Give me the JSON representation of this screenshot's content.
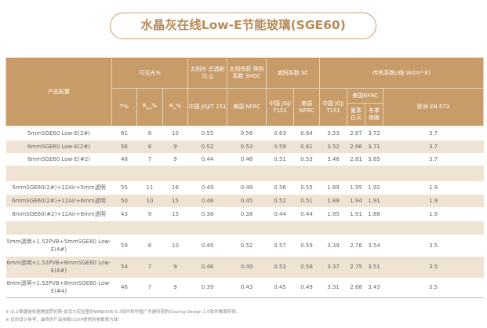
{
  "title": "水晶灰在线Low-E节能玻璃(SGE60)",
  "header": {
    "config": "产品配置",
    "visible": "可见光%",
    "solar": "太阳光 总透射比 g",
    "shgc": "太阳热获 得热系数 SHGC",
    "sc": "遮阳系数 SC",
    "u": "传热系数U值 W/(m²·K)",
    "t": "T%",
    "rout": "R",
    "rout_sub": "out",
    "rin": "R",
    "rin_sub": "in",
    "pct": "%",
    "cn_jgj_t151": "中国 JGJ/T 151",
    "us_nfrc": "美国 NFRC",
    "cn_jgj_t151b": "中国 JGJ/ T151",
    "us_nfrc_b": "美国 NFRC",
    "cn_jgj_t151c": "中国 JGJ/ T151",
    "us_nfrc_group": "美国NFRC",
    "summer": "夏季 白天",
    "winter": "冬季 夜晚",
    "eu": "欧洲 EN 673"
  },
  "rows": [
    [
      "5mmSGE60 Low-E(2#)",
      "61",
      "8",
      "10",
      "0.55",
      "0.56",
      "0.63",
      "0.64",
      "3.53",
      "2.87",
      "3.72",
      "3.7"
    ],
    [
      "6mmSGE60 Low-E(2#)",
      "56",
      "8",
      "9",
      "0.52",
      "0.53",
      "0.59",
      "0.61",
      "3.52",
      "2.86",
      "3.71",
      "3.7"
    ],
    [
      "8mmSGE60 Low-E(#2)",
      "48",
      "7",
      "9",
      "0.44",
      "0.46",
      "0.51",
      "0.53",
      "3.46",
      "2.81",
      "3.65",
      "3.7"
    ],
    null,
    [
      "5mmSGE60(2#)+12Air+5mm透明",
      "55",
      "11",
      "16",
      "0.49",
      "0.48",
      "0.56",
      "0.55",
      "1.89",
      "1.95",
      "1.92",
      "1.9"
    ],
    [
      "6mmSGE60(2#)+12Air+6mm透明",
      "50",
      "10",
      "15",
      "0.46",
      "0.45",
      "0.52",
      "0.51",
      "1.88",
      "1.94",
      "1.91",
      "1.9"
    ],
    [
      "8mmSGE60(#2)+12Air+8mm透明",
      "43",
      "9",
      "15",
      "0.38",
      "0.38",
      "0.44",
      "0.44",
      "1.85",
      "1.91",
      "1.88",
      "1.9"
    ],
    null,
    [
      "5mm透明+1.52PVB+5mmSGE60 Low-E(4#)",
      "59",
      "8",
      "10",
      "0.49",
      "0.52",
      "0.57",
      "0.59",
      "3.39",
      "2.76",
      "3.54",
      "3.5"
    ],
    [
      "6mm透明+1.52PVB+6mmSGE60 Low-E(4#)",
      "54",
      "7",
      "9",
      "0.46",
      "0.49",
      "0.53",
      "0.56",
      "3.37",
      "2.75",
      "3.51",
      "3.5"
    ],
    [
      "8mm透明+1.52PVB+8mmSGE60 Low-E(#4)",
      "46",
      "7",
      "9",
      "0.39",
      "0.43",
      "0.45",
      "0.49",
      "3.31",
      "2.68",
      "3.43",
      "3.5"
    ]
  ],
  "notes": [
    "※ 以上数据是依据美国劳伦斯·伯克力实验室的WINDOW 6.3软件和中国广东建科院的Glazing Design 1.0软件推算所得。",
    "※ 仅供设计参考，最终的产品参数以SYP提供的参数表为准！"
  ]
}
